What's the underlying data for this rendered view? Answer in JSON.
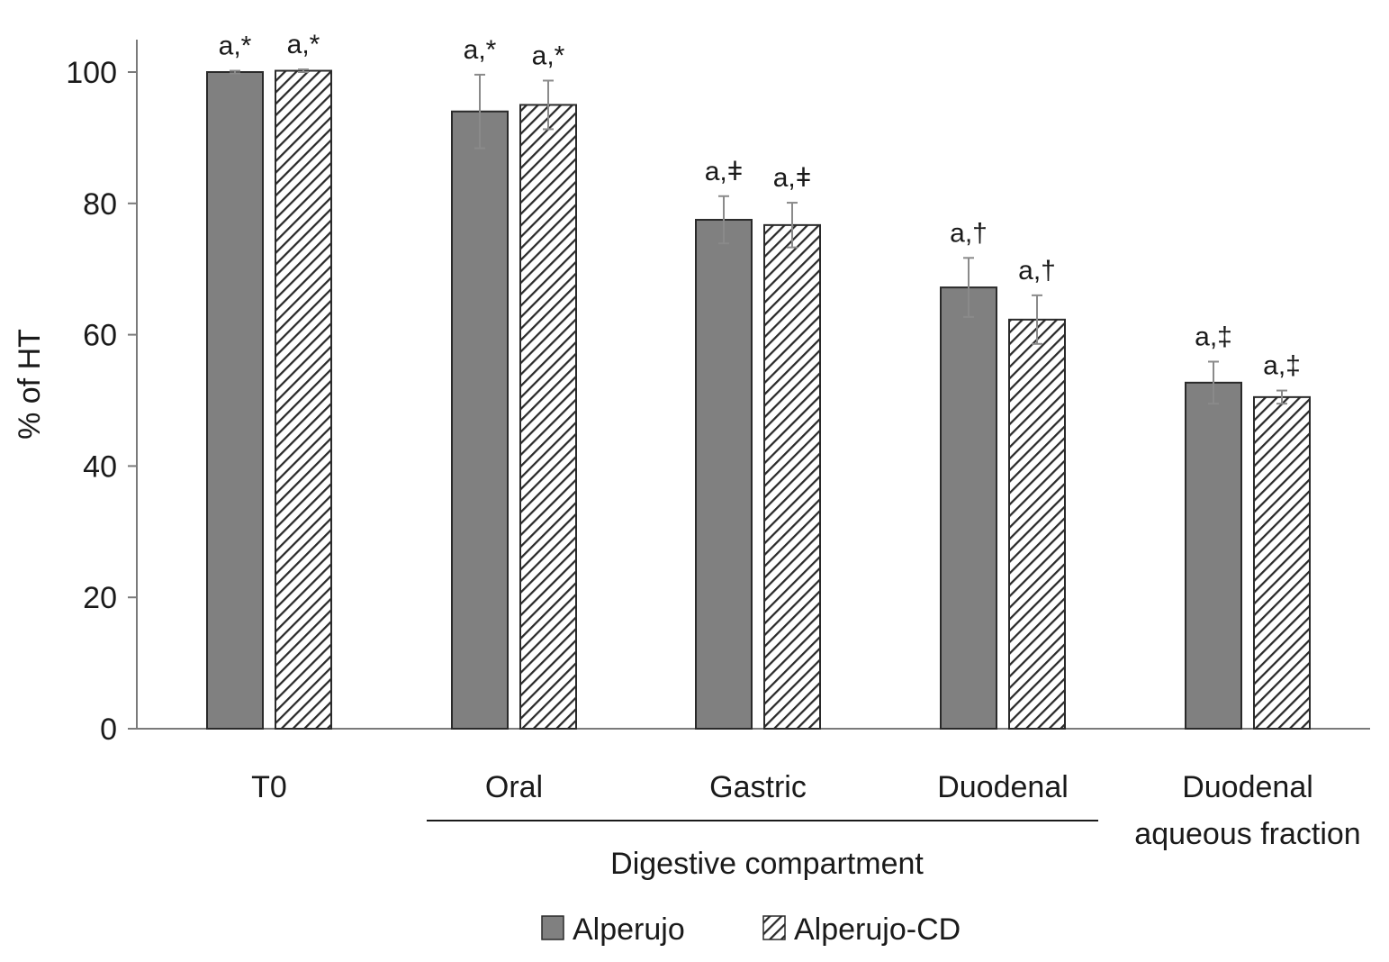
{
  "chart_data": {
    "type": "bar",
    "ylabel": "% of HT",
    "ylim": [
      0,
      100
    ],
    "yticks": [
      0,
      20,
      40,
      60,
      80,
      100
    ],
    "grid": false,
    "legend_position": "bottom",
    "categories": [
      [
        "T0"
      ],
      [
        "Oral"
      ],
      [
        "Gastric"
      ],
      [
        "Duodenal"
      ],
      [
        "Duodenal",
        "aqueous fraction"
      ]
    ],
    "group_label": {
      "text": "Digestive compartment",
      "spans_categories": [
        1,
        3
      ]
    },
    "series": [
      {
        "name": "Alperujo",
        "color": "#808080",
        "pattern": "solid",
        "values": [
          100,
          94,
          77.5,
          67.2,
          52.7
        ],
        "errors": [
          0.2,
          5.6,
          3.6,
          4.5,
          3.2
        ],
        "labels": [
          "a,*",
          "a,*",
          "a,ǂ",
          "a,†",
          "a,‡"
        ]
      },
      {
        "name": "Alperujo-CD",
        "color": "#333333",
        "pattern": "hatch",
        "values": [
          100.2,
          95,
          76.7,
          62.3,
          50.5
        ],
        "errors": [
          0.2,
          3.7,
          3.4,
          3.7,
          1.0
        ],
        "labels": [
          "a,*",
          "a,*",
          "a,ǂ",
          "a,†",
          "a,‡"
        ]
      }
    ]
  }
}
